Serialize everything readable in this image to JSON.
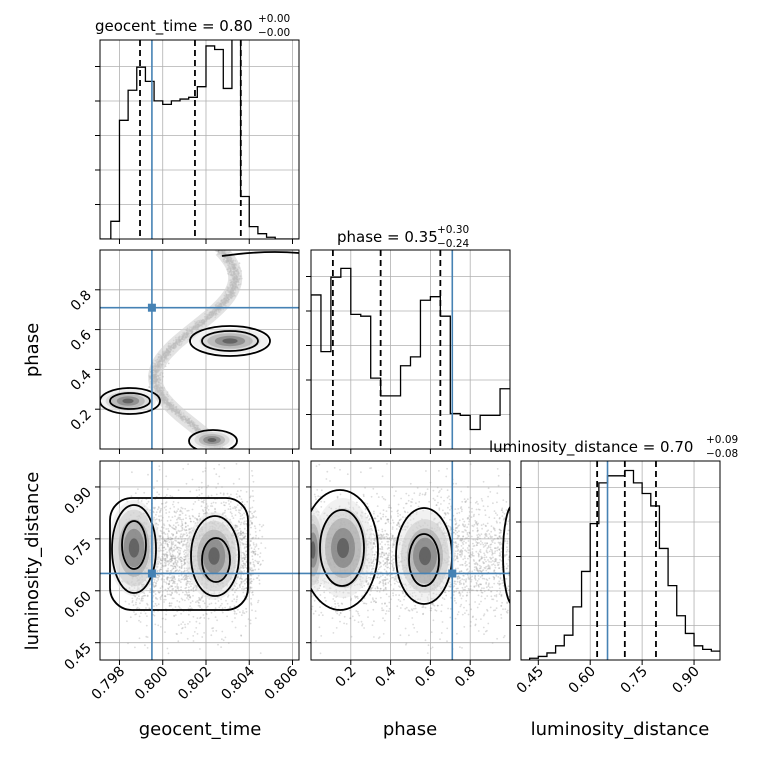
{
  "chart_data": {
    "type": "corner",
    "parameters": [
      "geocent_time",
      "phase",
      "luminosity_distance"
    ],
    "truths": {
      "geocent_time": 0.7995,
      "phase": 0.71,
      "luminosity_distance": 0.65
    },
    "titles": [
      {
        "param": "geocent_time",
        "text": "geocent_time = 0.80",
        "sup": "+0.00",
        "sub": "−0.00"
      },
      {
        "param": "phase",
        "text": "phase = 0.35",
        "sup": "+0.30",
        "sub": "−0.24"
      },
      {
        "param": "luminosity_distance",
        "text": "luminosity_distance = 0.70",
        "sup": "+0.09",
        "sub": "−0.08"
      }
    ],
    "ranges": {
      "geocent_time": [
        0.7971,
        0.8063
      ],
      "phase": [
        0.0,
        1.0
      ],
      "luminosity_distance": [
        0.4,
        0.975
      ]
    },
    "ticks": {
      "geocent_time": {
        "values": [
          0.798,
          0.8,
          0.802,
          0.804,
          0.806
        ],
        "labels": [
          "0.798",
          "0.800",
          "0.802",
          "0.804",
          "0.806"
        ]
      },
      "phase_x": {
        "values": [
          0.2,
          0.4,
          0.6,
          0.8
        ],
        "labels": [
          "0.2",
          "0.4",
          "0.6",
          "0.8"
        ]
      },
      "phase_y": {
        "values": [
          0.2,
          0.4,
          0.6,
          0.8
        ],
        "labels": [
          "0.2",
          "0.4",
          "0.6",
          "0.8"
        ]
      },
      "luminosity_distance": {
        "values": [
          0.45,
          0.6,
          0.75,
          0.9
        ],
        "labels": [
          "0.45",
          "0.60",
          "0.75",
          "0.90"
        ]
      }
    },
    "histograms": {
      "geocent_time": {
        "edges": [
          0.7971,
          0.7976,
          0.798,
          0.7984,
          0.7988,
          0.7992,
          0.7996,
          0.8,
          0.8004,
          0.8008,
          0.8012,
          0.8016,
          0.802,
          0.8024,
          0.8028,
          0.8032,
          0.8036,
          0.804,
          0.8044,
          0.8048,
          0.8052,
          0.8063
        ],
        "counts": [
          0.0,
          0.1,
          0.67,
          0.84,
          0.97,
          0.89,
          0.78,
          0.76,
          0.78,
          0.79,
          0.8,
          0.86,
          1.09,
          1.07,
          0.85,
          1.32,
          0.24,
          0.07,
          0.03,
          0.01,
          0.0
        ],
        "quantiles": [
          0.79895,
          0.80149,
          0.80361
        ]
      },
      "phase": {
        "edges": [
          0.0,
          0.05,
          0.1,
          0.15,
          0.2,
          0.25,
          0.3,
          0.35,
          0.4,
          0.45,
          0.5,
          0.55,
          0.6,
          0.65,
          0.7,
          0.75,
          0.8,
          0.85,
          0.9,
          0.95,
          1.0
        ],
        "counts": [
          0.87,
          0.55,
          0.97,
          1.02,
          0.76,
          0.75,
          0.4,
          0.3,
          0.3,
          0.47,
          0.52,
          0.84,
          0.86,
          0.75,
          0.2,
          0.19,
          0.11,
          0.19,
          0.19,
          0.34
        ],
        "quantiles": [
          0.11,
          0.35,
          0.65
        ]
      },
      "luminosity_distance": {
        "edges": [
          0.4,
          0.425,
          0.45,
          0.475,
          0.5,
          0.525,
          0.55,
          0.575,
          0.6,
          0.625,
          0.65,
          0.675,
          0.7,
          0.725,
          0.75,
          0.775,
          0.8,
          0.825,
          0.85,
          0.875,
          0.9,
          0.925,
          0.95,
          0.975
        ],
        "counts": [
          0.0,
          0.01,
          0.02,
          0.04,
          0.08,
          0.14,
          0.3,
          0.5,
          0.77,
          1.0,
          1.04,
          1.04,
          1.07,
          1.0,
          0.94,
          0.87,
          0.63,
          0.42,
          0.25,
          0.15,
          0.08,
          0.06,
          0.05
        ],
        "quantiles": [
          0.62,
          0.7,
          0.79
        ]
      }
    },
    "density_2d": {
      "geocent_time_vs_phase": {
        "note_ridge": "sinusoidal"
      },
      "geocent_time_vs_luminosity_distance": {},
      "phase_vs_luminosity_distance": {}
    }
  },
  "labels": {
    "geocent_time": "geocent_time",
    "phase": "phase",
    "luminosity_distance": "luminosity_distance"
  }
}
